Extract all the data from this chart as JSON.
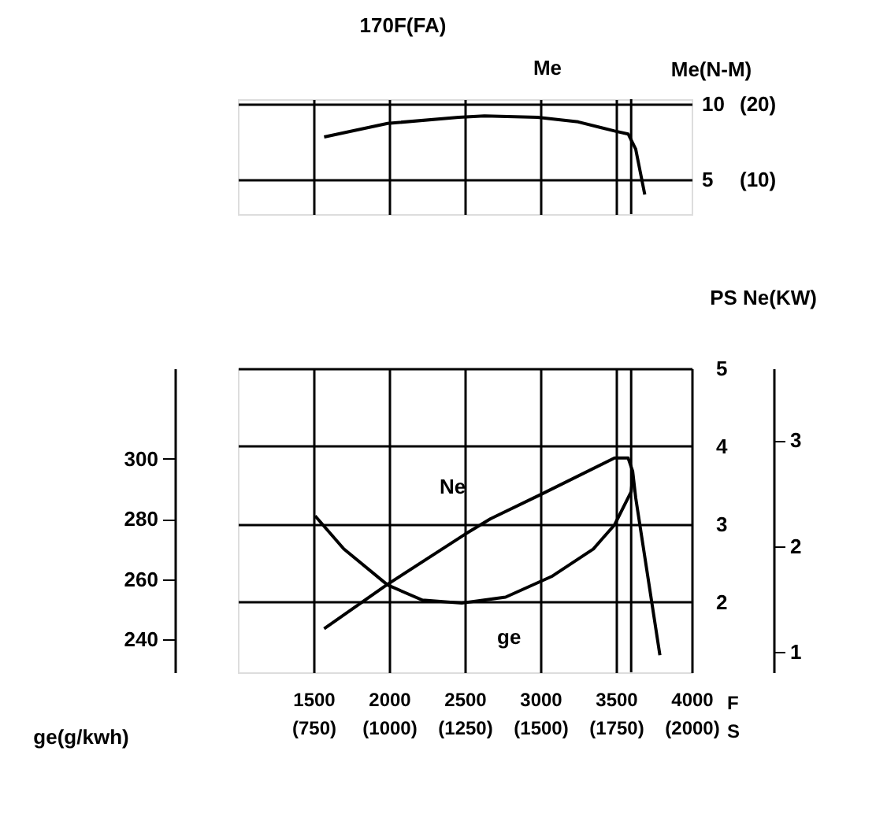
{
  "chart_data": [
    {
      "type": "line",
      "title": "170F(FA)",
      "ylabel": "Me(N-M)",
      "xlim": [
        1000,
        4000
      ],
      "xticks": [
        1500,
        2000,
        2500,
        3000,
        3500
      ],
      "ylim": [
        2.7,
        10.3
      ],
      "yticks": [
        5,
        10
      ],
      "y2lim": [
        5.4,
        20.6
      ],
      "y2ticks": [
        {
          "value": 10,
          "label": "(10)"
        },
        {
          "value": 20,
          "label": "(20)"
        }
      ],
      "tick_labels": "y",
      "grid": true,
      "legend": false,
      "ref_lines": [
        {
          "axis": "x",
          "value": 3600
        }
      ],
      "series": [
        {
          "name": "Me",
          "color": "#000000",
          "x": [
            1570,
            1990,
            2460,
            2630,
            2980,
            3250,
            3490,
            3580,
            3630,
            3690
          ],
          "values": [
            7.8,
            8.7,
            9.1,
            9.2,
            9.1,
            8.8,
            8.2,
            8.0,
            7.0,
            4.0
          ]
        }
      ]
    },
    {
      "type": "line",
      "xlabel": "F",
      "x2label": "S",
      "ylabel": "ge(g/kwh)",
      "y2label": "PS Ne(KW)",
      "xlim": [
        1000,
        4000
      ],
      "xticks": [
        1500,
        2000,
        2500,
        3000,
        3500,
        4000
      ],
      "x2lim": [
        500,
        2000
      ],
      "x2ticks": [
        {
          "value": 750,
          "label": "(750)"
        },
        {
          "value": 1000,
          "label": "(1000)"
        },
        {
          "value": 1250,
          "label": "(1250)"
        },
        {
          "value": 1500,
          "label": "(1500)"
        },
        {
          "value": 1750,
          "label": "(1750)"
        },
        {
          "value": 2000,
          "label": "(2000)"
        }
      ],
      "ylim": [
        229,
        330
      ],
      "yticks": [
        240,
        260,
        280,
        300
      ],
      "y2lim": [
        1.1,
        5
      ],
      "y2ticks": [
        2,
        3,
        4,
        5
      ],
      "y3lim": [
        0.81,
        3.68
      ],
      "y3ticks": [
        1,
        2,
        3
      ],
      "grid": true,
      "legend": false,
      "ref_lines": [
        {
          "axis": "x",
          "value": 3600
        }
      ],
      "series": [
        {
          "name": "ge",
          "color": "#000000",
          "axis": "y",
          "x": [
            1510,
            1700,
            1990,
            2220,
            2480,
            2770,
            3080,
            3350,
            3490,
            3600,
            3610
          ],
          "values": [
            281,
            270,
            258,
            253,
            252,
            254,
            261,
            270,
            278,
            289,
            294
          ]
        },
        {
          "name": "Ne",
          "color": "#000000",
          "axis": "y2",
          "x": [
            1570,
            1990,
            2500,
            2670,
            3000,
            3490,
            3580,
            3610,
            3630,
            3790
          ],
          "values": [
            1.66,
            2.23,
            2.87,
            3.07,
            3.38,
            3.85,
            3.85,
            3.68,
            3.34,
            1.32
          ]
        }
      ]
    }
  ]
}
